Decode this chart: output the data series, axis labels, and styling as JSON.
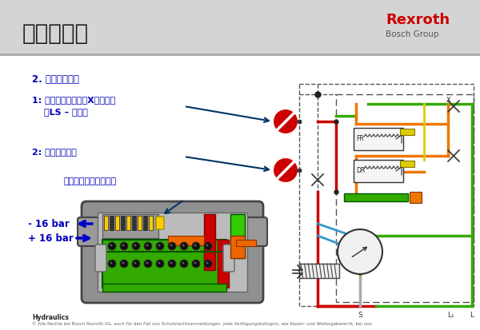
{
  "title": "流量阀设定",
  "logo_text1": "Rexroth",
  "logo_text2": "Bosch Group",
  "header_bg": "#d4d4d4",
  "body_bg": "#ffffff",
  "text1": "2. 用压差设定：",
  "label1_a": "1: 检测负载压力，即X口压力！",
  "label1_b": "（LS – 信号）",
  "label2": "2: 检测高压压力",
  "label3": "（在流量阀的油堵处）",
  "bar1": "- 16 bar",
  "bar2": "+ 16 bar",
  "footer1": "Hydraulics",
  "footer2": "© Alle Rechte bei Bosch Rexroth AG, auch für den Fall von Schutzrechtsanmeldungen. Jede Verfügungsbefugnis, wie Kopier- und Weitergaberecht, bei uns.",
  "blue_text": "#0000bb",
  "dark_blue": "#003366",
  "red_color": "#cc0000",
  "green_color": "#33cc00",
  "orange_color": "#ee6600",
  "yellow_color": "#ffcc00",
  "gray_body": "#999999",
  "light_gray": "#cccccc",
  "schematic_red": "#cc0000",
  "schematic_green": "#33aa00",
  "schematic_orange": "#ee7700",
  "schematic_yellow": "#ddcc00",
  "schematic_blue": "#3399cc",
  "header_line": "#aaaaaa"
}
